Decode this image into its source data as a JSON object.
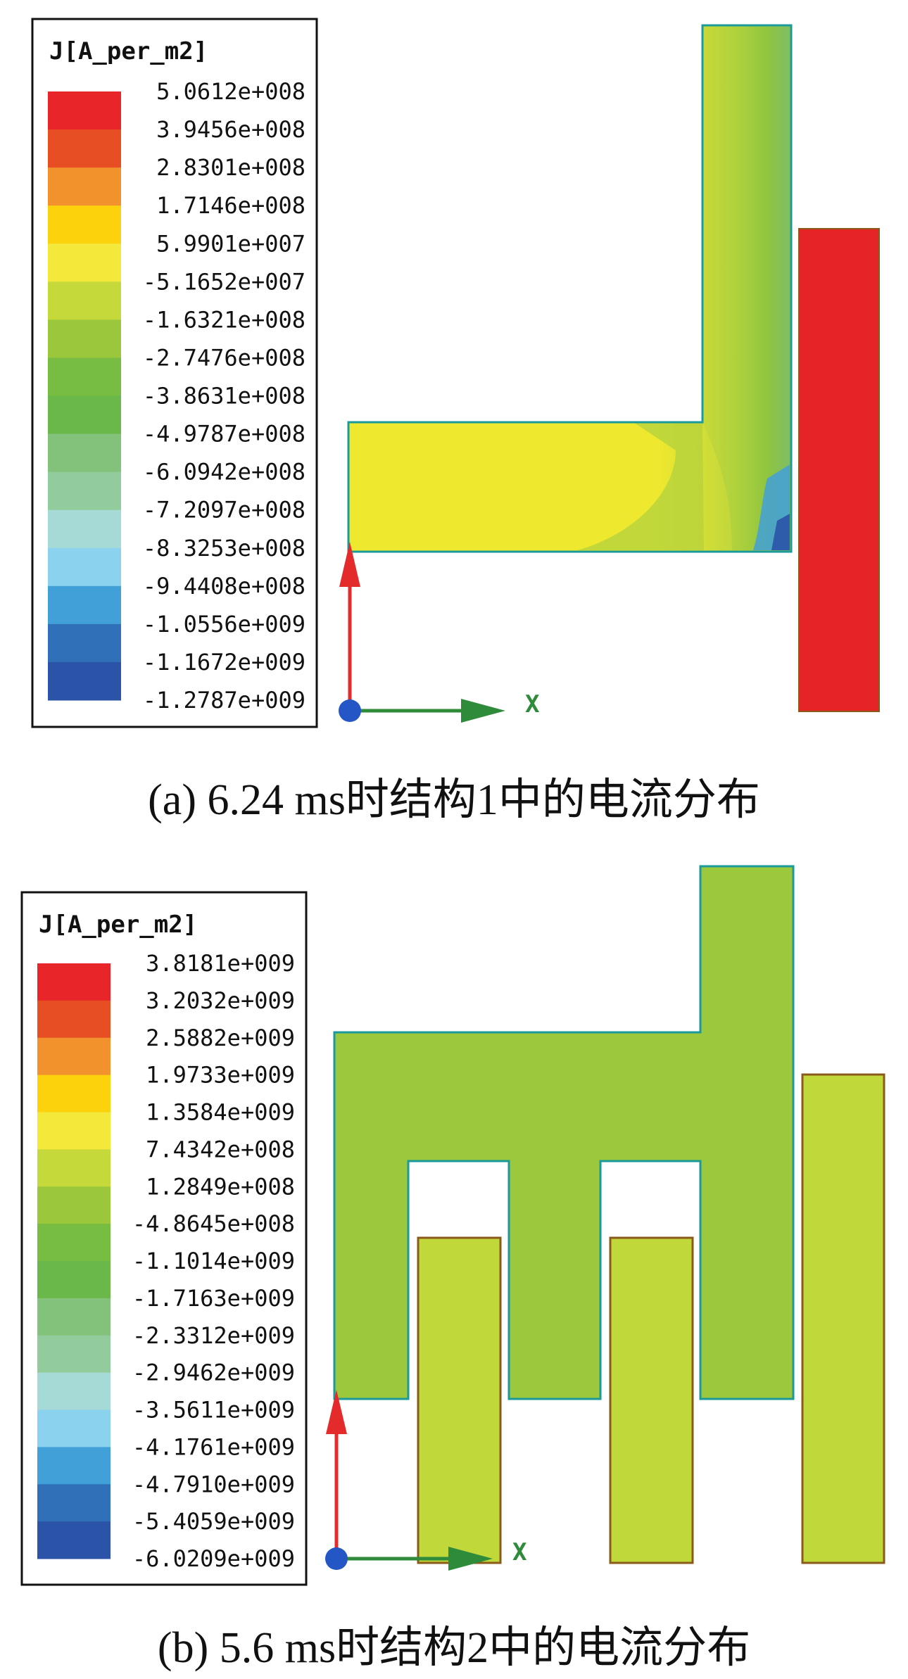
{
  "colors": {
    "scale": [
      "#e8262a",
      "#e84e24",
      "#f2922c",
      "#fcd20d",
      "#f4e83a",
      "#c6d93a",
      "#9bc73c",
      "#77bd41",
      "#6bb84a",
      "#82c27a",
      "#93cc9c",
      "#a6dad6",
      "#8bd2ee",
      "#42a0d8",
      "#2f70b8",
      "#2b54a8"
    ],
    "legend_border": "#111111",
    "conductor_yellow": "#eee82e",
    "conductor_green": "#9cc83e",
    "conductor_red": "#e62428",
    "bar_yellow_green": "#c0d83a",
    "outline_teal": "#1a9a9a",
    "outline_brown": "#8a5a1a",
    "axis_red": "#e32b2b",
    "axis_green": "#2e8b3a",
    "origin_blue": "#2456c6"
  },
  "panel_a": {
    "legend_title": "J[A_per_m2]",
    "legend_values": [
      "5.0612e+008",
      "3.9456e+008",
      "2.8301e+008",
      "1.7146e+008",
      "5.9901e+007",
      "-5.1652e+007",
      "-1.6321e+008",
      "-2.7476e+008",
      "-3.8631e+008",
      "-4.9787e+008",
      "-6.0942e+008",
      "-7.2097e+008",
      "-8.3253e+008",
      "-9.4408e+008",
      "-1.0556e+009",
      "-1.1672e+009",
      "-1.2787e+009"
    ],
    "axis_label": "X",
    "caption": "(a)  6.24 ms时结构1中的电流分布"
  },
  "panel_b": {
    "legend_title": "J[A_per_m2]",
    "legend_values": [
      "3.8181e+009",
      "3.2032e+009",
      "2.5882e+009",
      "1.9733e+009",
      "1.3584e+009",
      "7.4342e+008",
      "1.2849e+008",
      "-4.8645e+008",
      "-1.1014e+009",
      "-1.7163e+009",
      "-2.3312e+009",
      "-2.9462e+009",
      "-3.5611e+009",
      "-4.1761e+009",
      "-4.7910e+009",
      "-5.4059e+009",
      "-6.0209e+009"
    ],
    "axis_label": "X",
    "caption": "(b)  5.6 ms时结构2中的电流分布"
  }
}
